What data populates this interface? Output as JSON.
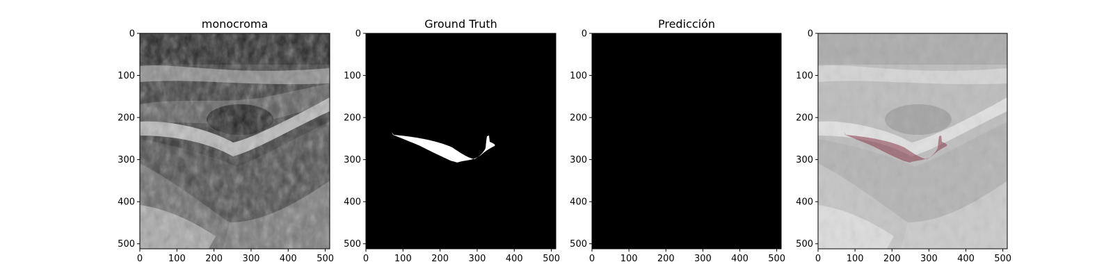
{
  "panels": [
    {
      "title": "monocroma",
      "kind": "ultrasound-image",
      "x_ticks": [
        "0",
        "100",
        "200",
        "300",
        "400",
        "500"
      ],
      "y_ticks": [
        "0",
        "100",
        "200",
        "300",
        "400",
        "500"
      ]
    },
    {
      "title": "Ground Truth",
      "kind": "mask",
      "x_ticks": [
        "0",
        "100",
        "200",
        "300",
        "400",
        "500"
      ],
      "y_ticks": [
        "0",
        "100",
        "200",
        "300",
        "400",
        "500"
      ]
    },
    {
      "title": "Predicción",
      "kind": "empty-mask",
      "x_ticks": [
        "0",
        "100",
        "200",
        "300",
        "400",
        "500"
      ],
      "y_ticks": [
        "0",
        "100",
        "200",
        "300",
        "400",
        "500"
      ]
    },
    {
      "title": "",
      "kind": "overlay",
      "x_ticks": [
        "0",
        "100",
        "200",
        "300",
        "400",
        "500"
      ],
      "y_ticks": [
        "0",
        "100",
        "200",
        "300",
        "400",
        "500"
      ]
    }
  ],
  "image_extent": [
    0,
    512
  ],
  "colors": {
    "mask_background": "#000000",
    "mask_foreground": "#ffffff",
    "overlay_region": "#8b3a4a"
  }
}
